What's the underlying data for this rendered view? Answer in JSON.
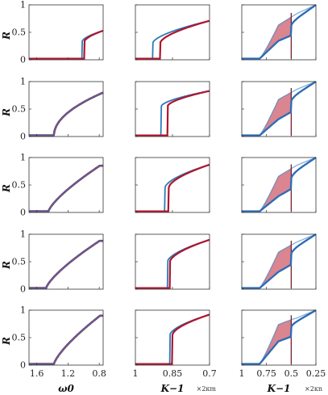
{
  "chart_data": {
    "type": "line",
    "layout": "5 rows x 3 columns grid of panels",
    "colors": {
      "blue": "#2b7bba",
      "red": "#b0152e",
      "fill": "#d4707c"
    },
    "ylabel": "R",
    "ylim": [
      0,
      1
    ],
    "yticks": [
      "0",
      "0.5",
      "1"
    ],
    "columns": [
      {
        "xlabel": "ω0",
        "xlim": [
          1.7,
          0.75
        ],
        "xticks": [
          {
            "v": 1.6,
            "label": "1.6"
          },
          {
            "v": 1.2,
            "label": "1.2"
          },
          {
            "v": 0.8,
            "label": "0.8"
          }
        ],
        "multiplier": ""
      },
      {
        "xlabel": "K−1",
        "xlim": [
          1.0,
          0.7
        ],
        "xticks": [
          {
            "v": 1.0,
            "label": "1"
          },
          {
            "v": 0.85,
            "label": "0.85"
          },
          {
            "v": 0.7,
            "label": "0.7"
          }
        ],
        "multiplier": "×2κm"
      },
      {
        "xlabel": "K−1",
        "xlim": [
          1.0,
          0.25
        ],
        "xticks": [
          {
            "v": 1.0,
            "label": "1"
          },
          {
            "v": 0.75,
            "label": "0.75"
          },
          {
            "v": 0.5,
            "label": "0.5"
          },
          {
            "v": 0.25,
            "label": "0.25"
          }
        ],
        "multiplier": "×2κn"
      }
    ],
    "panels": [
      [
        {
          "kind": "jump",
          "xc": 1.02,
          "jump": 0.33,
          "top": 0.53,
          "hyst": 0.03,
          "fill": false
        },
        {
          "kind": "jump",
          "xc": 0.93,
          "jump": 0.3,
          "top": 0.71,
          "hyst": 0.03,
          "hystAt": 0.875,
          "fill": true
        },
        {
          "kind": "band",
          "xa": 0.82,
          "xb": 0.5,
          "upper": [
            0.0,
            0.75,
            0.9,
            1.0
          ],
          "lower": [
            0.0,
            0.33,
            0.48,
            0.55
          ]
        }
      ],
      [
        {
          "kind": "root",
          "xc": 1.38,
          "top": 0.8,
          "fill": false
        },
        {
          "kind": "jump",
          "xc": 0.895,
          "jump": 0.55,
          "top": 0.83,
          "hyst": 0.025,
          "hystAt": 0.87,
          "fill": true
        },
        {
          "kind": "band",
          "xa": 0.82,
          "xb": 0.5,
          "upper": [
            0.0,
            0.8,
            0.92,
            1.0
          ],
          "lower": [
            0.0,
            0.3,
            0.5,
            0.58
          ]
        }
      ],
      [
        {
          "kind": "linear",
          "xc": 1.45,
          "top": 0.85,
          "fill": false
        },
        {
          "kind": "jump",
          "xc": 0.88,
          "jump": 0.45,
          "top": 0.87,
          "hyst": 0.015,
          "hystAt": 0.86,
          "fill": true
        },
        {
          "kind": "band",
          "xa": 0.82,
          "xb": 0.5,
          "upper": [
            0.0,
            0.78,
            0.92,
            1.0
          ],
          "lower": [
            0.0,
            0.28,
            0.48,
            0.72
          ]
        }
      ],
      [
        {
          "kind": "linear",
          "xc": 1.48,
          "top": 0.88,
          "fill": false
        },
        {
          "kind": "jump",
          "xc": 0.87,
          "jump": 0.5,
          "top": 0.9,
          "hyst": 0.01,
          "hystAt": 0.855,
          "fill": true
        },
        {
          "kind": "band",
          "xa": 0.82,
          "xb": 0.5,
          "upper": [
            0.0,
            0.8,
            0.92,
            1.0
          ],
          "lower": [
            0.0,
            0.3,
            0.5,
            0.72
          ]
        }
      ],
      [
        {
          "kind": "linear",
          "xc": 1.38,
          "top": 0.9,
          "fill": false
        },
        {
          "kind": "jump",
          "xc": 0.86,
          "jump": 0.55,
          "top": 0.92,
          "hyst": 0.01,
          "hystAt": 0.85,
          "fill": true
        },
        {
          "kind": "band",
          "xa": 0.82,
          "xb": 0.5,
          "upper": [
            0.0,
            0.88,
            0.92,
            1.0
          ],
          "lower": [
            0.0,
            0.42,
            0.55,
            0.72
          ]
        }
      ]
    ]
  }
}
